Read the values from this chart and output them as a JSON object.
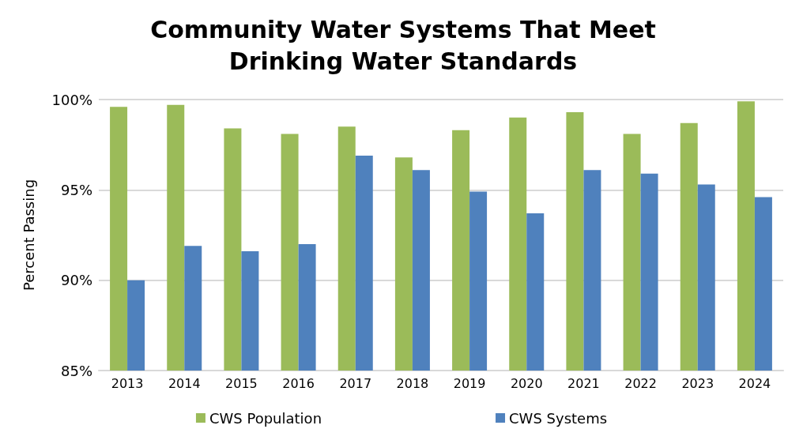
{
  "chart_data": {
    "type": "bar",
    "title": "Community Water Systems That Meet\nDrinking Water Standards",
    "ylabel": "Percent Passing",
    "categories": [
      "2013",
      "2014",
      "2015",
      "2016",
      "2017",
      "2018",
      "2019",
      "2020",
      "2021",
      "2022",
      "2023",
      "2024"
    ],
    "series": [
      {
        "name": "CWS Population",
        "color": "#9bbb59",
        "values": [
          99.6,
          99.7,
          98.4,
          98.1,
          98.5,
          96.8,
          98.3,
          99.0,
          99.3,
          98.1,
          98.7,
          99.9
        ]
      },
      {
        "name": "CWS Systems",
        "color": "#4f81bd",
        "values": [
          90.0,
          91.9,
          91.6,
          92.0,
          96.9,
          96.1,
          94.9,
          93.7,
          96.1,
          95.9,
          95.3,
          94.6
        ]
      }
    ],
    "ylim": [
      85,
      100
    ],
    "yticks": [
      {
        "value": 85,
        "label": "85%"
      },
      {
        "value": 90,
        "label": "90%"
      },
      {
        "value": 95,
        "label": "95%"
      },
      {
        "value": 100,
        "label": "100%"
      }
    ],
    "grid": "y",
    "legend": "bottom"
  }
}
